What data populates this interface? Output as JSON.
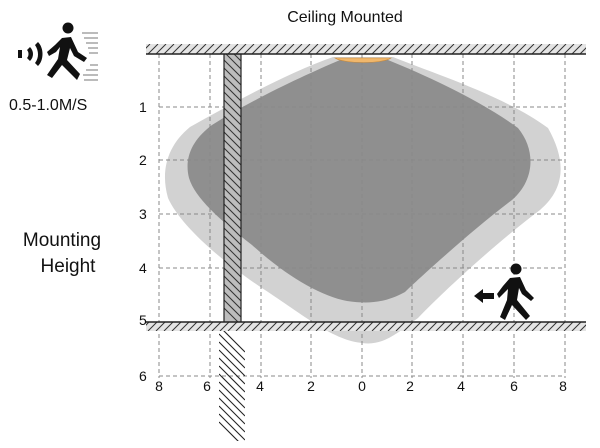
{
  "diagram": {
    "title": "Ceiling Mounted",
    "speed_label": "0.5-1.0M/S",
    "mounting_label_line1": "Mounting",
    "mounting_label_line2": "Height",
    "y_ticks": [
      "1",
      "2",
      "3",
      "4",
      "5",
      "6"
    ],
    "x_ticks": [
      "8",
      "6",
      "4",
      "2",
      "0",
      "2",
      "4",
      "6",
      "8"
    ],
    "icons": [
      "motion-waves-icon",
      "walking-person-icon",
      "walking-person-icon",
      "direction-arrow-icon",
      "ceiling-sensor-icon"
    ],
    "colors": {
      "outer_zone": "#d2d2d2",
      "inner_zone": "#8f8f8f",
      "sensor": "#f0b76c",
      "grid": "#888888",
      "hatch": "#333333"
    }
  }
}
